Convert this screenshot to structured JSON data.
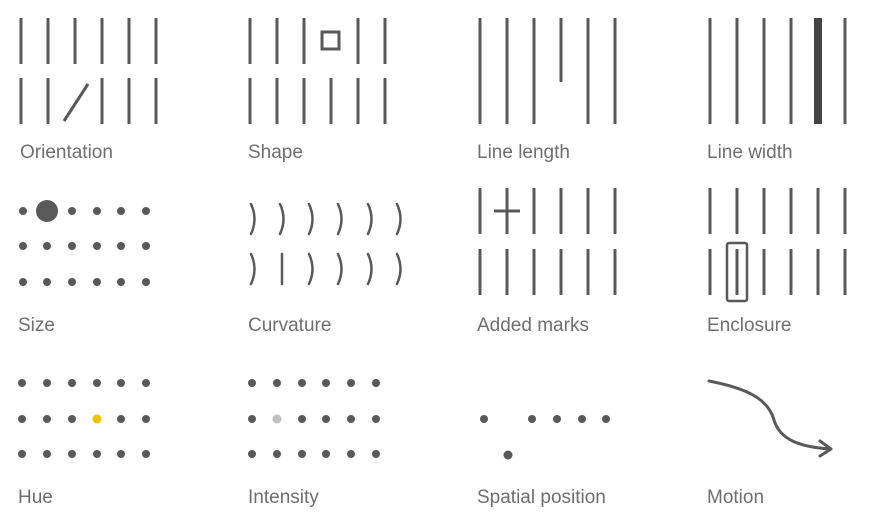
{
  "panels": [
    {
      "id": "orientation",
      "label": "Orientation"
    },
    {
      "id": "shape",
      "label": "Shape"
    },
    {
      "id": "line-length",
      "label": "Line length"
    },
    {
      "id": "line-width",
      "label": "Line width"
    },
    {
      "id": "size",
      "label": "Size"
    },
    {
      "id": "curvature",
      "label": "Curvature"
    },
    {
      "id": "added-marks",
      "label": "Added marks"
    },
    {
      "id": "enclosure",
      "label": "Enclosure"
    },
    {
      "id": "hue",
      "label": "Hue"
    },
    {
      "id": "intensity",
      "label": "Intensity"
    },
    {
      "id": "spatial-position",
      "label": "Spatial position"
    },
    {
      "id": "motion",
      "label": "Motion"
    }
  ],
  "colors": {
    "mark": "#595959",
    "label": "#6f6f6f",
    "hue_target": "#f2c200",
    "intensity_target": "#c0c0c0"
  }
}
